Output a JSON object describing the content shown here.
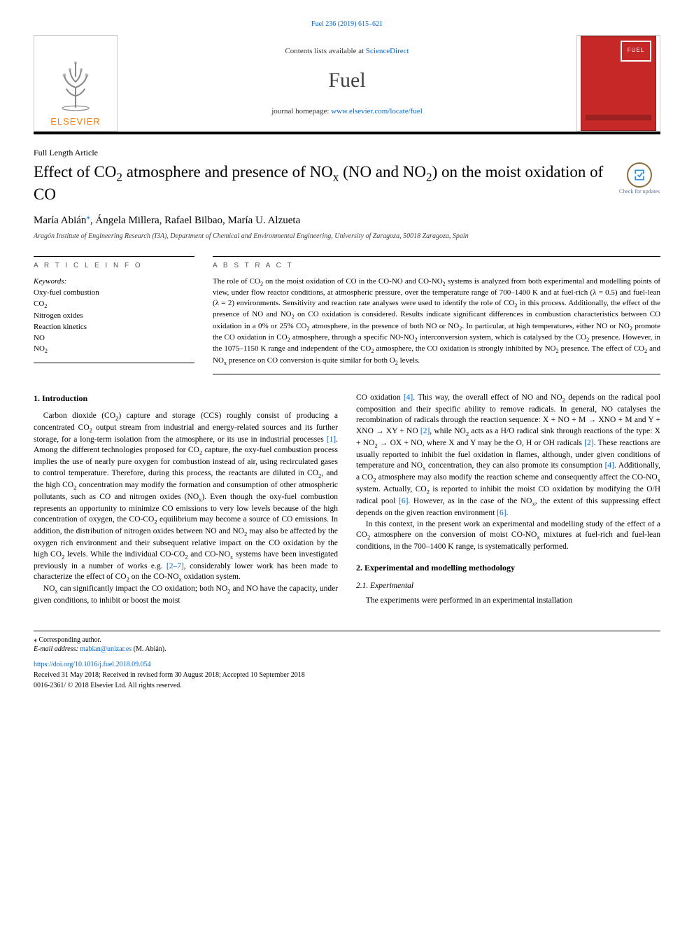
{
  "header": {
    "journal_ref_link": "Fuel 236 (2019) 615–621",
    "contents_line_prefix": "Contents lists available at ",
    "contents_line_link": "ScienceDirect",
    "journal_name": "Fuel",
    "homepage_prefix": "journal homepage: ",
    "homepage_link": "www.elsevier.com/locate/fuel",
    "elsevier_label": "ELSEVIER",
    "cover_text": "FUEL"
  },
  "article": {
    "type": "Full Length Article",
    "title_html": "Effect of CO<sub>2</sub> atmosphere and presence of NO<sub>x</sub> (NO and NO<sub>2</sub>) on the moist oxidation of CO",
    "check_updates_caption": "Check for updates",
    "authors_html": "María Abián<span class=\"corr\">⁎</span>, Ángela Millera, Rafael Bilbao, María U. Alzueta",
    "affiliation": "Aragón Institute of Engineering Research (I3A), Department of Chemical and Environmental Engineering, University of Zaragoza, 50018 Zaragoza, Spain"
  },
  "info": {
    "left_heading": "A R T I C L E  I N F O",
    "right_heading": "A B S T R A C T",
    "kw_label": "Keywords:",
    "keywords": [
      "Oxy-fuel combustion",
      "CO<sub>2</sub>",
      "Nitrogen oxides",
      "Reaction kinetics",
      "NO",
      "NO<sub>2</sub>"
    ],
    "abstract_html": "The role of CO<sub>2</sub> on the moist oxidation of CO in the CO-NO and CO-NO<sub>2</sub> systems is analyzed from both experimental and modelling points of view, under flow reactor conditions, at atmospheric pressure, over the temperature range of 700–1400 K and at fuel-rich (λ = 0.5) and fuel-lean (λ = 2) environments. Sensitivity and reaction rate analyses were used to identify the role of CO<sub>2</sub> in this process. Additionally, the effect of the presence of NO and NO<sub>2</sub> on CO oxidation is considered. Results indicate significant differences in combustion characteristics between CO oxidation in a 0% or 25% CO<sub>2</sub> atmosphere, in the presence of both NO or NO<sub>2</sub>. In particular, at high temperatures, either NO or NO<sub>2</sub> promote the CO oxidation in CO<sub>2</sub> atmosphere, through a specific NO-NO<sub>2</sub> interconversion system, which is catalysed by the CO<sub>2</sub> presence. However, in the 1075–1150 K range and independent of the CO<sub>2</sub> atmosphere, the CO oxidation is strongly inhibited by NO<sub>2</sub> presence. The effect of CO<sub>2</sub> and NO<sub>x</sub> presence on CO conversion is quite similar for both O<sub>2</sub> levels."
  },
  "body": {
    "sec1_heading": "1. Introduction",
    "col1_p1_html": "Carbon dioxide (CO<sub>2</sub>) capture and storage (CCS) roughly consist of producing a concentrated CO<sub>2</sub> output stream from industrial and energy-related sources and its further storage, for a long-term isolation from the atmosphere, or its use in industrial processes <a href=\"#\">[1]</a>. Among the different technologies proposed for CO<sub>2</sub> capture, the oxy-fuel combustion process implies the use of nearly pure oxygen for combustion instead of air, using recirculated gases to control temperature. Therefore, during this process, the reactants are diluted in CO<sub>2</sub>, and the high CO<sub>2</sub> concentration may modify the formation and consumption of other atmospheric pollutants, such as CO and nitrogen oxides (NO<sub>x</sub>). Even though the oxy-fuel combustion represents an opportunity to minimize CO emissions to very low levels because of the high concentration of oxygen, the CO-CO<sub>2</sub> equilibrium may become a source of CO emissions. In addition, the distribution of nitrogen oxides between NO and NO<sub>2</sub> may also be affected by the oxygen rich environment and their subsequent relative impact on the CO oxidation by the high CO<sub>2</sub> levels. While the individual CO-CO<sub>2</sub> and CO-NO<sub>x</sub> systems have been investigated previously in a number of works e.g. <a href=\"#\">[2–7]</a>, considerably lower work has been made to characterize the effect of CO<sub>2</sub> on the CO-NO<sub>x</sub> oxidation system.",
    "col1_p2_html": "NO<sub>x</sub> can significantly impact the CO oxidation; both NO<sub>2</sub> and NO have the capacity, under given conditions, to inhibit or boost the moist",
    "col2_p1_html": "CO oxidation <a href=\"#\">[4]</a>. This way, the overall effect of NO and NO<sub>2</sub> depends on the radical pool composition and their specific ability to remove radicals. In general, NO catalyses the recombination of radicals through the reaction sequence: X + NO + M → XNO + M and Y + XNO → XY + NO <a href=\"#\">[2]</a>, while NO<sub>2</sub> acts as a H/O radical sink through reactions of the type: X + NO<sub>2</sub> → OX + NO, where X and Y may be the O, H or OH radicals <a href=\"#\">[2]</a>. These reactions are usually reported to inhibit the fuel oxidation in flames, although, under given conditions of temperature and NO<sub>x</sub> concentration, they can also promote its consumption <a href=\"#\">[4]</a>. Additionally, a CO<sub>2</sub> atmosphere may also modify the reaction scheme and consequently affect the CO-NO<sub>x</sub> system. Actually, CO<sub>2</sub> is reported to inhibit the moist CO oxidation by modifying the O/H radical pool <a href=\"#\">[6]</a>. However, as in the case of the NO<sub>x</sub>, the extent of this suppressing effect depends on the given reaction environment <a href=\"#\">[6]</a>.",
    "col2_p2_html": "In this context, in the present work an experimental and modelling study of the effect of a CO<sub>2</sub> atmosphere on the conversion of moist CO-NO<sub>x</sub> mixtures at fuel-rich and fuel-lean conditions, in the 700–1400 K range, is systematically performed.",
    "sec2_heading": "2. Experimental and modelling methodology",
    "sec21_heading": "2.1. Experimental",
    "col2_p3_html": "The experiments were performed in an experimental installation"
  },
  "footer": {
    "corr_note": "⁎ Corresponding author.",
    "email_label": "E-mail address: ",
    "email_link": "mabian@unizar.es",
    "email_suffix": " (M. Abián).",
    "doi_link": "https://doi.org/10.1016/j.fuel.2018.09.054",
    "received": "Received 31 May 2018; Received in revised form 30 August 2018; Accepted 10 September 2018",
    "issn": "0016-2361/ © 2018 Elsevier Ltd. All rights reserved."
  },
  "colors": {
    "link": "#0066cc",
    "elsevier_orange": "#ff7a00",
    "cover_red": "#c62828",
    "rule": "#000000"
  }
}
